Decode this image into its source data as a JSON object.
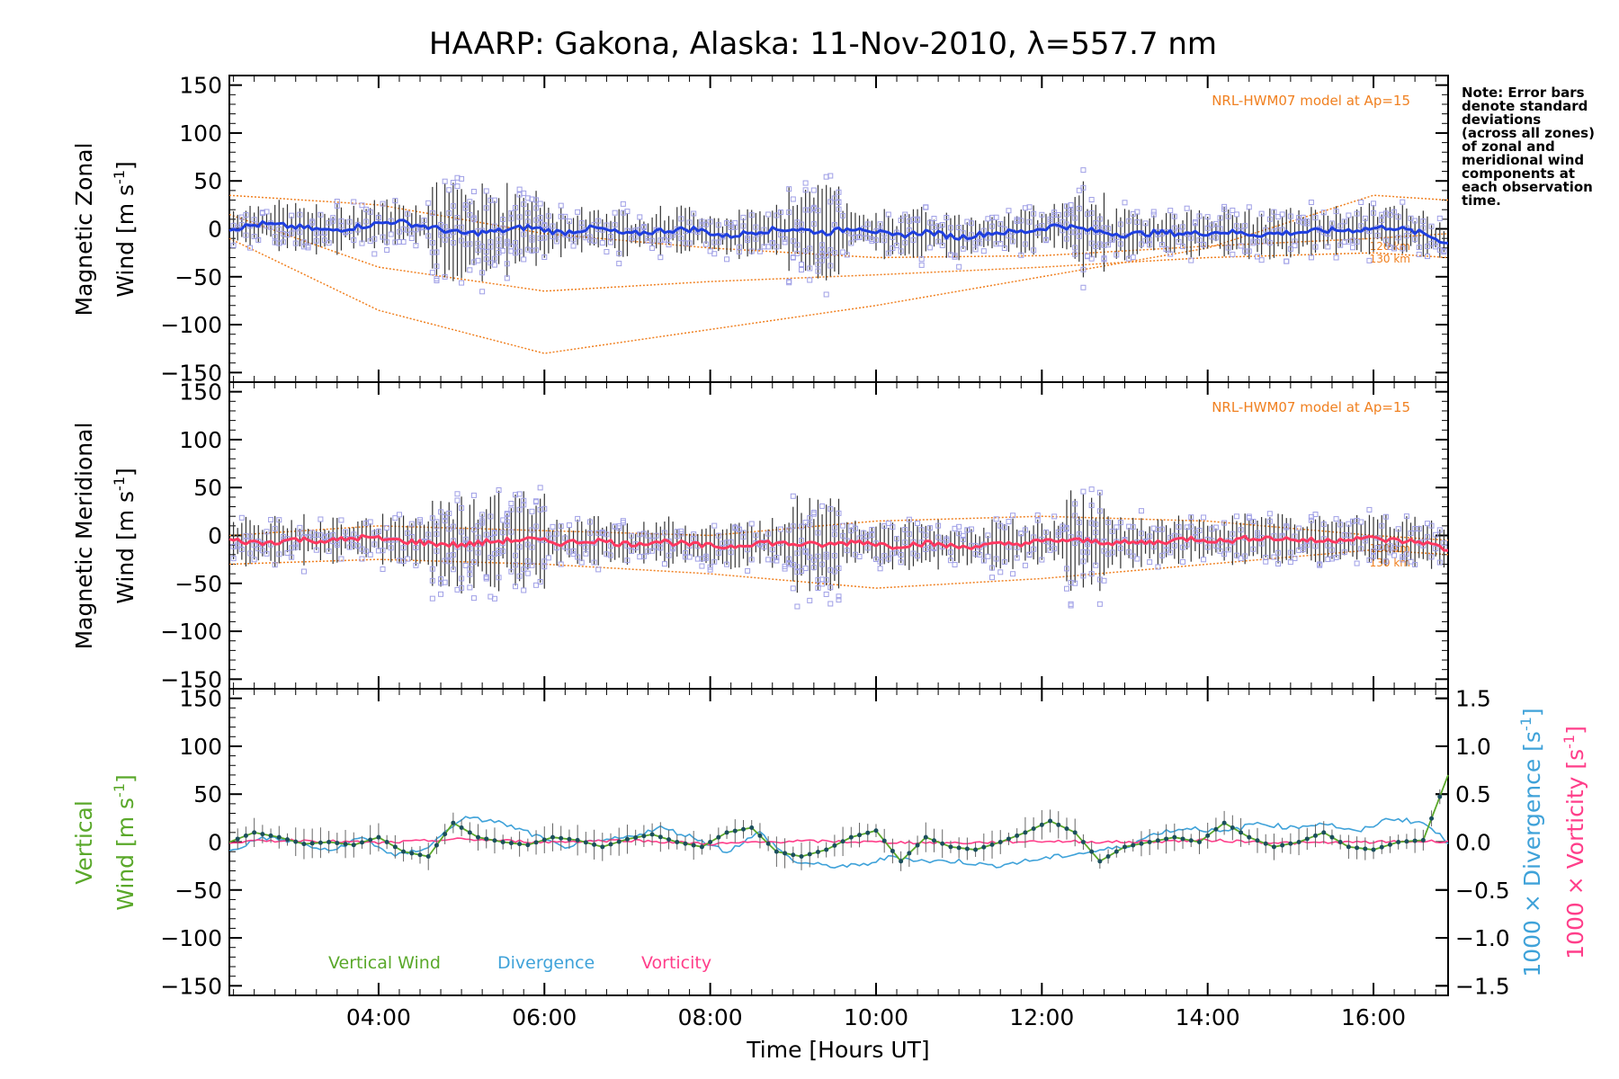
{
  "figure": {
    "title": "HAARP: Gakona,  Alaska: 11-Nov-2010, λ=557.7 nm",
    "note": [
      "Note: Error bars",
      "denote standard",
      "deviations",
      "(across all zones)",
      "of zonal and",
      "meridional wind",
      "components at",
      "each observation",
      "time."
    ],
    "xlabel": "Time [Hours UT]",
    "xlim": [
      2.2,
      16.9
    ],
    "xticks": [
      4,
      6,
      8,
      10,
      12,
      14,
      16
    ],
    "xtick_labels": [
      "04:00",
      "06:00",
      "08:00",
      "10:00",
      "12:00",
      "14:00",
      "16:00"
    ],
    "colors": {
      "zonal": "#1f3fe0",
      "zonal_mean": "#4aa3e8",
      "meridional": "#ff3860",
      "model": "#f08020",
      "scatter": "#9f9fe6",
      "vertical": "#5aa82a",
      "divergence": "#3fa2d9",
      "vorticity": "#ff3e8a",
      "error_bar": "#333333",
      "vertical_marker": "#1b4f5c"
    }
  },
  "chart_data": [
    {
      "type": "line",
      "panel": "zonal",
      "ylabel": [
        "Magnetic Zonal",
        "Wind [m s",
        "-1",
        "]"
      ],
      "ylim": [
        -160,
        160
      ],
      "yticks": [
        -150,
        -100,
        -50,
        0,
        50,
        100,
        150
      ],
      "model_label": "NRL-HWM07 model at Ap=15",
      "model_altitudes": [
        "120 km",
        "130 km"
      ],
      "series": [
        {
          "name": "Magnetic Zonal Wind",
          "x": [
            2.2,
            2.6,
            3.0,
            3.4,
            3.8,
            4.2,
            4.6,
            5.0,
            5.4,
            5.8,
            6.2,
            6.6,
            7.0,
            7.4,
            7.8,
            8.2,
            8.6,
            9.0,
            9.4,
            9.8,
            10.2,
            10.6,
            11.0,
            11.4,
            11.8,
            12.2,
            12.6,
            13.0,
            13.4,
            13.8,
            14.2,
            14.6,
            15.0,
            15.4,
            15.8,
            16.2,
            16.6,
            16.9
          ],
          "y": [
            0,
            5,
            2,
            -2,
            3,
            8,
            2,
            -5,
            -3,
            2,
            -4,
            1,
            -6,
            -2,
            0,
            -8,
            -2,
            0,
            -4,
            2,
            -8,
            -3,
            -9,
            -4,
            -3,
            4,
            -2,
            -6,
            -4,
            -5,
            -3,
            -6,
            -4,
            -2,
            -1,
            2,
            -5,
            -15
          ]
        },
        {
          "name": "NRL-HWM07 model 120 km",
          "x": [
            2.2,
            4.0,
            6.0,
            8.0,
            10.0,
            12.0,
            14.0,
            16.0,
            16.9
          ],
          "y": [
            35,
            25,
            -5,
            -20,
            -30,
            -28,
            -18,
            -10,
            -5
          ]
        },
        {
          "name": "NRL-HWM07 model 130 km",
          "x": [
            2.2,
            4.0,
            6.0,
            8.0,
            10.0,
            12.0,
            14.0,
            16.0,
            16.9
          ],
          "y": [
            15,
            -40,
            -65,
            -55,
            -48,
            -40,
            -30,
            -25,
            -30
          ]
        },
        {
          "name": "NRL-HWM07 model",
          "x": [
            2.2,
            4.0,
            6.0,
            8.0,
            10.0,
            12.0,
            14.0,
            16.0,
            16.9
          ],
          "y": [
            -10,
            -85,
            -130,
            -105,
            -80,
            -50,
            -20,
            35,
            30
          ]
        }
      ]
    },
    {
      "type": "line",
      "panel": "meridional",
      "ylabel": [
        "Magnetic Meridional",
        "Wind [m s",
        "-1",
        "]"
      ],
      "ylim": [
        -160,
        160
      ],
      "yticks": [
        -150,
        -100,
        -50,
        0,
        50,
        100,
        150
      ],
      "model_label": "NRL-HWM07 model at Ap=15",
      "model_altitudes": [
        "120 km",
        "130 km"
      ],
      "series": [
        {
          "name": "Magnetic Meridional Wind",
          "x": [
            2.2,
            2.6,
            3.0,
            3.4,
            3.8,
            4.2,
            4.6,
            5.0,
            5.4,
            5.8,
            6.2,
            6.6,
            7.0,
            7.4,
            7.8,
            8.2,
            8.6,
            9.0,
            9.4,
            9.8,
            10.2,
            10.6,
            11.0,
            11.4,
            11.8,
            12.2,
            12.6,
            13.0,
            13.4,
            13.8,
            14.2,
            14.6,
            15.0,
            15.4,
            15.8,
            16.2,
            16.6,
            16.9
          ],
          "y": [
            -5,
            -8,
            -4,
            -6,
            -2,
            -5,
            -8,
            -10,
            -6,
            -4,
            -8,
            -5,
            -9,
            -6,
            -10,
            -12,
            -7,
            -9,
            -10,
            -6,
            -11,
            -8,
            -12,
            -10,
            -8,
            -5,
            -6,
            -8,
            -7,
            -3,
            -6,
            -2,
            -4,
            -6,
            -2,
            -5,
            -7,
            -15
          ]
        },
        {
          "name": "NRL-HWM07 model 120 km",
          "x": [
            2.2,
            4.0,
            6.0,
            8.0,
            10.0,
            12.0,
            14.0,
            16.0,
            16.9
          ],
          "y": [
            0,
            10,
            5,
            0,
            15,
            20,
            15,
            0,
            -5
          ]
        },
        {
          "name": "NRL-HWM07 model 130 km",
          "x": [
            2.2,
            4.0,
            6.0,
            8.0,
            10.0,
            12.0,
            14.0,
            16.0,
            16.9
          ],
          "y": [
            -30,
            -25,
            -30,
            -40,
            -55,
            -45,
            -30,
            -15,
            -20
          ]
        }
      ]
    },
    {
      "type": "line",
      "panel": "vertical",
      "ylabel": [
        "Vertical",
        "Wind [m s",
        "-1",
        "]"
      ],
      "ylim": [
        -160,
        160
      ],
      "yticks": [
        -150,
        -100,
        -50,
        0,
        50,
        100,
        150
      ],
      "y2label": [
        "1000 × Divergence [s",
        "-1",
        "]"
      ],
      "y3label": [
        "1000 × Vorticity [s",
        "-1",
        "]"
      ],
      "y2lim": [
        -1.6,
        1.6
      ],
      "y2ticks": [
        -1.5,
        -1.0,
        -0.5,
        0.0,
        0.5,
        1.0,
        1.5
      ],
      "y2tick_labels": [
        "−1.5",
        "−1.0",
        "−0.5",
        "0.0",
        "0.5",
        "1.0",
        "1.5"
      ],
      "legend": [
        "Vertical Wind",
        "Divergence",
        "Vorticity"
      ],
      "series": [
        {
          "name": "Vertical Wind",
          "x": [
            2.2,
            2.5,
            2.8,
            3.1,
            3.4,
            3.7,
            4.0,
            4.3,
            4.6,
            4.9,
            5.2,
            5.5,
            5.8,
            6.1,
            6.4,
            6.7,
            7.0,
            7.3,
            7.6,
            7.9,
            8.2,
            8.5,
            8.8,
            9.1,
            9.4,
            9.7,
            10.0,
            10.3,
            10.6,
            10.9,
            11.2,
            11.5,
            11.8,
            12.1,
            12.4,
            12.7,
            13.0,
            13.3,
            13.6,
            13.9,
            14.2,
            14.5,
            14.8,
            15.1,
            15.4,
            15.7,
            16.0,
            16.3,
            16.6,
            16.9
          ],
          "y": [
            0,
            10,
            5,
            -2,
            0,
            -3,
            5,
            -10,
            -15,
            20,
            5,
            0,
            -3,
            5,
            2,
            -5,
            3,
            8,
            0,
            -5,
            10,
            15,
            -10,
            -15,
            -8,
            5,
            12,
            -20,
            5,
            -5,
            -8,
            0,
            10,
            22,
            10,
            -20,
            -5,
            0,
            5,
            0,
            20,
            5,
            -5,
            0,
            10,
            -5,
            -8,
            0,
            2,
            70
          ]
        },
        {
          "name": "Divergence",
          "x": [
            2.2,
            2.6,
            3.0,
            3.4,
            3.8,
            4.2,
            4.6,
            5.0,
            5.4,
            5.8,
            6.2,
            6.6,
            7.0,
            7.4,
            7.8,
            8.2,
            8.6,
            9.0,
            9.4,
            9.8,
            10.2,
            10.6,
            11.0,
            11.4,
            11.8,
            12.2,
            12.6,
            13.0,
            13.4,
            13.8,
            14.2,
            14.6,
            15.0,
            15.4,
            15.8,
            16.2,
            16.6,
            16.9
          ],
          "y": [
            -0.1,
            0.05,
            0.0,
            -0.1,
            0.05,
            -0.15,
            -0.05,
            0.25,
            0.22,
            0.1,
            -0.05,
            0.0,
            0.05,
            0.15,
            0.05,
            -0.1,
            0.1,
            -0.2,
            -0.25,
            -0.25,
            -0.15,
            -0.2,
            -0.2,
            -0.25,
            -0.2,
            -0.15,
            -0.1,
            -0.05,
            0.1,
            0.15,
            0.1,
            0.2,
            0.15,
            0.2,
            0.1,
            0.25,
            0.2,
            0.0
          ]
        },
        {
          "name": "Vorticity",
          "x": [
            2.2,
            3.0,
            4.0,
            5.0,
            6.0,
            7.0,
            8.0,
            9.0,
            10.0,
            11.0,
            12.0,
            13.0,
            14.0,
            15.0,
            16.0,
            16.9
          ],
          "y": [
            0.0,
            0.02,
            -0.01,
            0.03,
            0.0,
            0.02,
            -0.02,
            0.01,
            0.0,
            -0.01,
            0.01,
            0.0,
            0.02,
            -0.01,
            0.0,
            0.01
          ]
        }
      ]
    }
  ]
}
